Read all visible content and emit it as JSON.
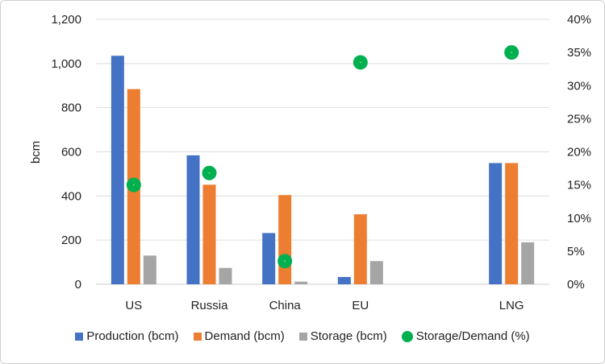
{
  "chart_data": {
    "type": "bar",
    "title": "",
    "xlabel": "",
    "ylabel": "bcm",
    "ylim": [
      0,
      1200
    ],
    "y_ticks": [
      "0",
      "200",
      "400",
      "600",
      "800",
      "1,000",
      "1,200"
    ],
    "y2lim": [
      0,
      40
    ],
    "y2_ticks": [
      "0%",
      "5%",
      "10%",
      "15%",
      "20%",
      "25%",
      "30%",
      "35%",
      "40%"
    ],
    "categories": [
      "US",
      "Russia",
      "China",
      "EU",
      "",
      "LNG"
    ],
    "series": [
      {
        "name": "Production (bcm)",
        "type": "bar",
        "axis": "left",
        "color": "#4472C4",
        "values": [
          1035,
          584,
          232,
          33,
          null,
          549
        ]
      },
      {
        "name": "Demand (bcm)",
        "type": "bar",
        "axis": "left",
        "color": "#ED7D31",
        "values": [
          884,
          451,
          404,
          317,
          null,
          549
        ]
      },
      {
        "name": "Storage (bcm)",
        "type": "bar",
        "axis": "left",
        "color": "#A5A5A5",
        "values": [
          130,
          74,
          12,
          105,
          null,
          190
        ]
      },
      {
        "name": "Storage/Demand (%)",
        "type": "scatter",
        "axis": "right",
        "color": "#00B050",
        "values": [
          15.0,
          16.8,
          3.5,
          33.5,
          null,
          35.0
        ]
      }
    ],
    "grid": true,
    "legend": "bottom"
  }
}
